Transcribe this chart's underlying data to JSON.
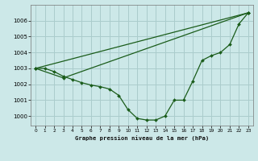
{
  "title": "Graphe pression niveau de la mer (hPa)",
  "bg_color": "#cce8e8",
  "grid_color": "#aacccc",
  "line_color": "#1a5c1a",
  "marker_color": "#1a5c1a",
  "xlim": [
    -0.5,
    23.5
  ],
  "ylim": [
    999.4,
    1007.0
  ],
  "xticks": [
    0,
    1,
    2,
    3,
    4,
    5,
    6,
    7,
    8,
    9,
    10,
    11,
    12,
    13,
    14,
    15,
    16,
    17,
    18,
    19,
    20,
    21,
    22,
    23
  ],
  "yticks": [
    1000,
    1001,
    1002,
    1003,
    1004,
    1005,
    1006
  ],
  "series1_x": [
    0,
    1,
    2,
    3,
    4,
    5,
    6,
    7,
    8,
    9,
    10,
    11,
    12,
    13,
    14,
    15,
    16,
    17,
    18,
    19,
    20,
    21,
    22,
    23
  ],
  "series1_y": [
    1003.0,
    1003.0,
    1002.8,
    1002.5,
    1002.3,
    1002.1,
    1001.95,
    1001.85,
    1001.7,
    1001.3,
    1000.4,
    999.85,
    999.75,
    999.75,
    1000.0,
    1001.0,
    1001.0,
    1002.2,
    1003.5,
    1003.8,
    1004.0,
    1004.5,
    1005.8,
    1006.5
  ],
  "series2_x": [
    0,
    3,
    23
  ],
  "series2_y": [
    1003.0,
    1002.4,
    1006.5
  ],
  "series3_x": [
    0,
    23
  ],
  "series3_y": [
    1003.0,
    1006.5
  ]
}
